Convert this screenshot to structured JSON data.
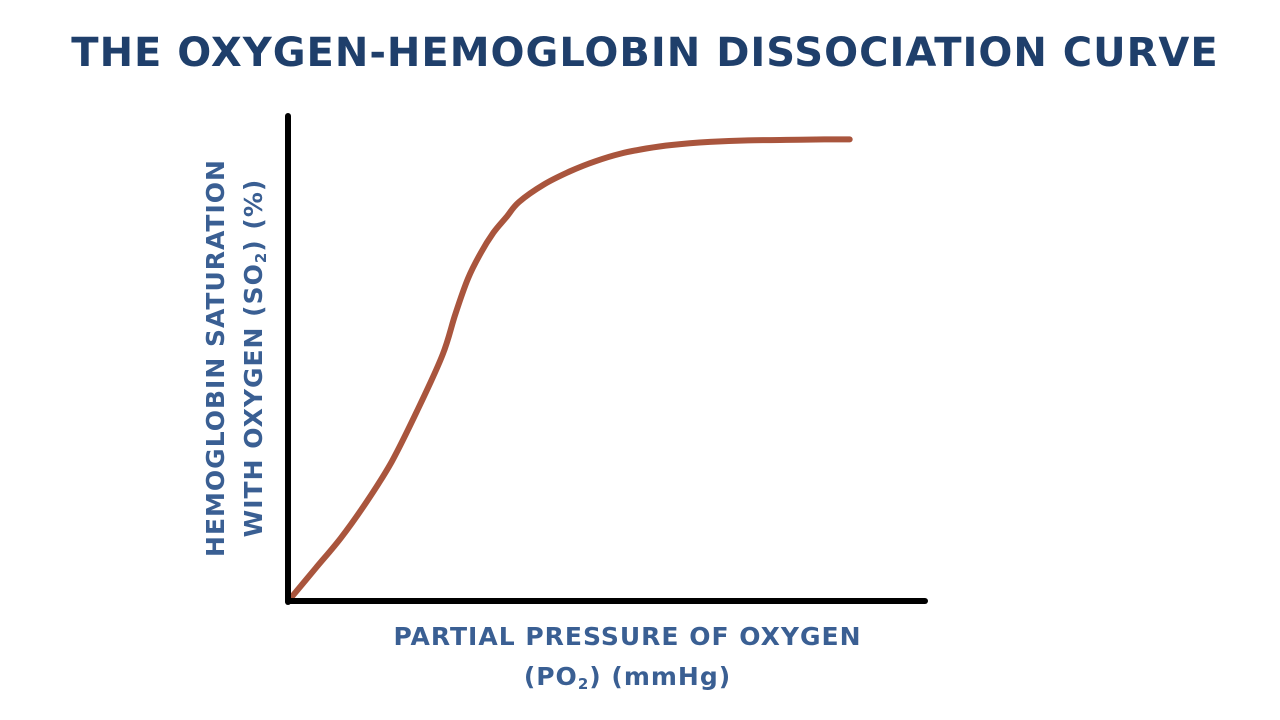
{
  "chart_data": {
    "type": "line",
    "title": "THE OXYGEN-HEMOGLOBIN DISSOCIATION CURVE",
    "ylabel": {
      "line1": "HEMOGLOBIN SATURATION",
      "line2_prefix": "WITH OXYGEN (SO",
      "line2_sub": "2",
      "line2_suffix": ") (%)"
    },
    "xlabel": {
      "line1": "PARTIAL PRESSURE OF OXYGEN",
      "line2_prefix": "(PO",
      "line2_sub": "2",
      "line2_suffix": ") (mmHg)"
    },
    "xlim": [
      0,
      100
    ],
    "ylim": [
      0,
      100
    ],
    "grid": false,
    "series": [
      {
        "color": "#a9553d",
        "x": [
          0,
          4,
          8,
          12,
          16,
          20,
          24,
          26,
          28,
          30,
          32,
          34,
          36,
          40,
          44,
          48,
          52,
          56,
          60,
          66,
          72,
          78,
          84,
          88
        ],
        "y": [
          0,
          6,
          12,
          19,
          27,
          37,
          48,
          56,
          63,
          68,
          72,
          75,
          78,
          81.5,
          84,
          86,
          87.5,
          88.5,
          89.2,
          89.8,
          90.1,
          90.2,
          90.3,
          90.3
        ]
      }
    ]
  },
  "colors": {
    "axis": "#000000",
    "text": "#1f3f6b",
    "label": "#3a5f93"
  }
}
